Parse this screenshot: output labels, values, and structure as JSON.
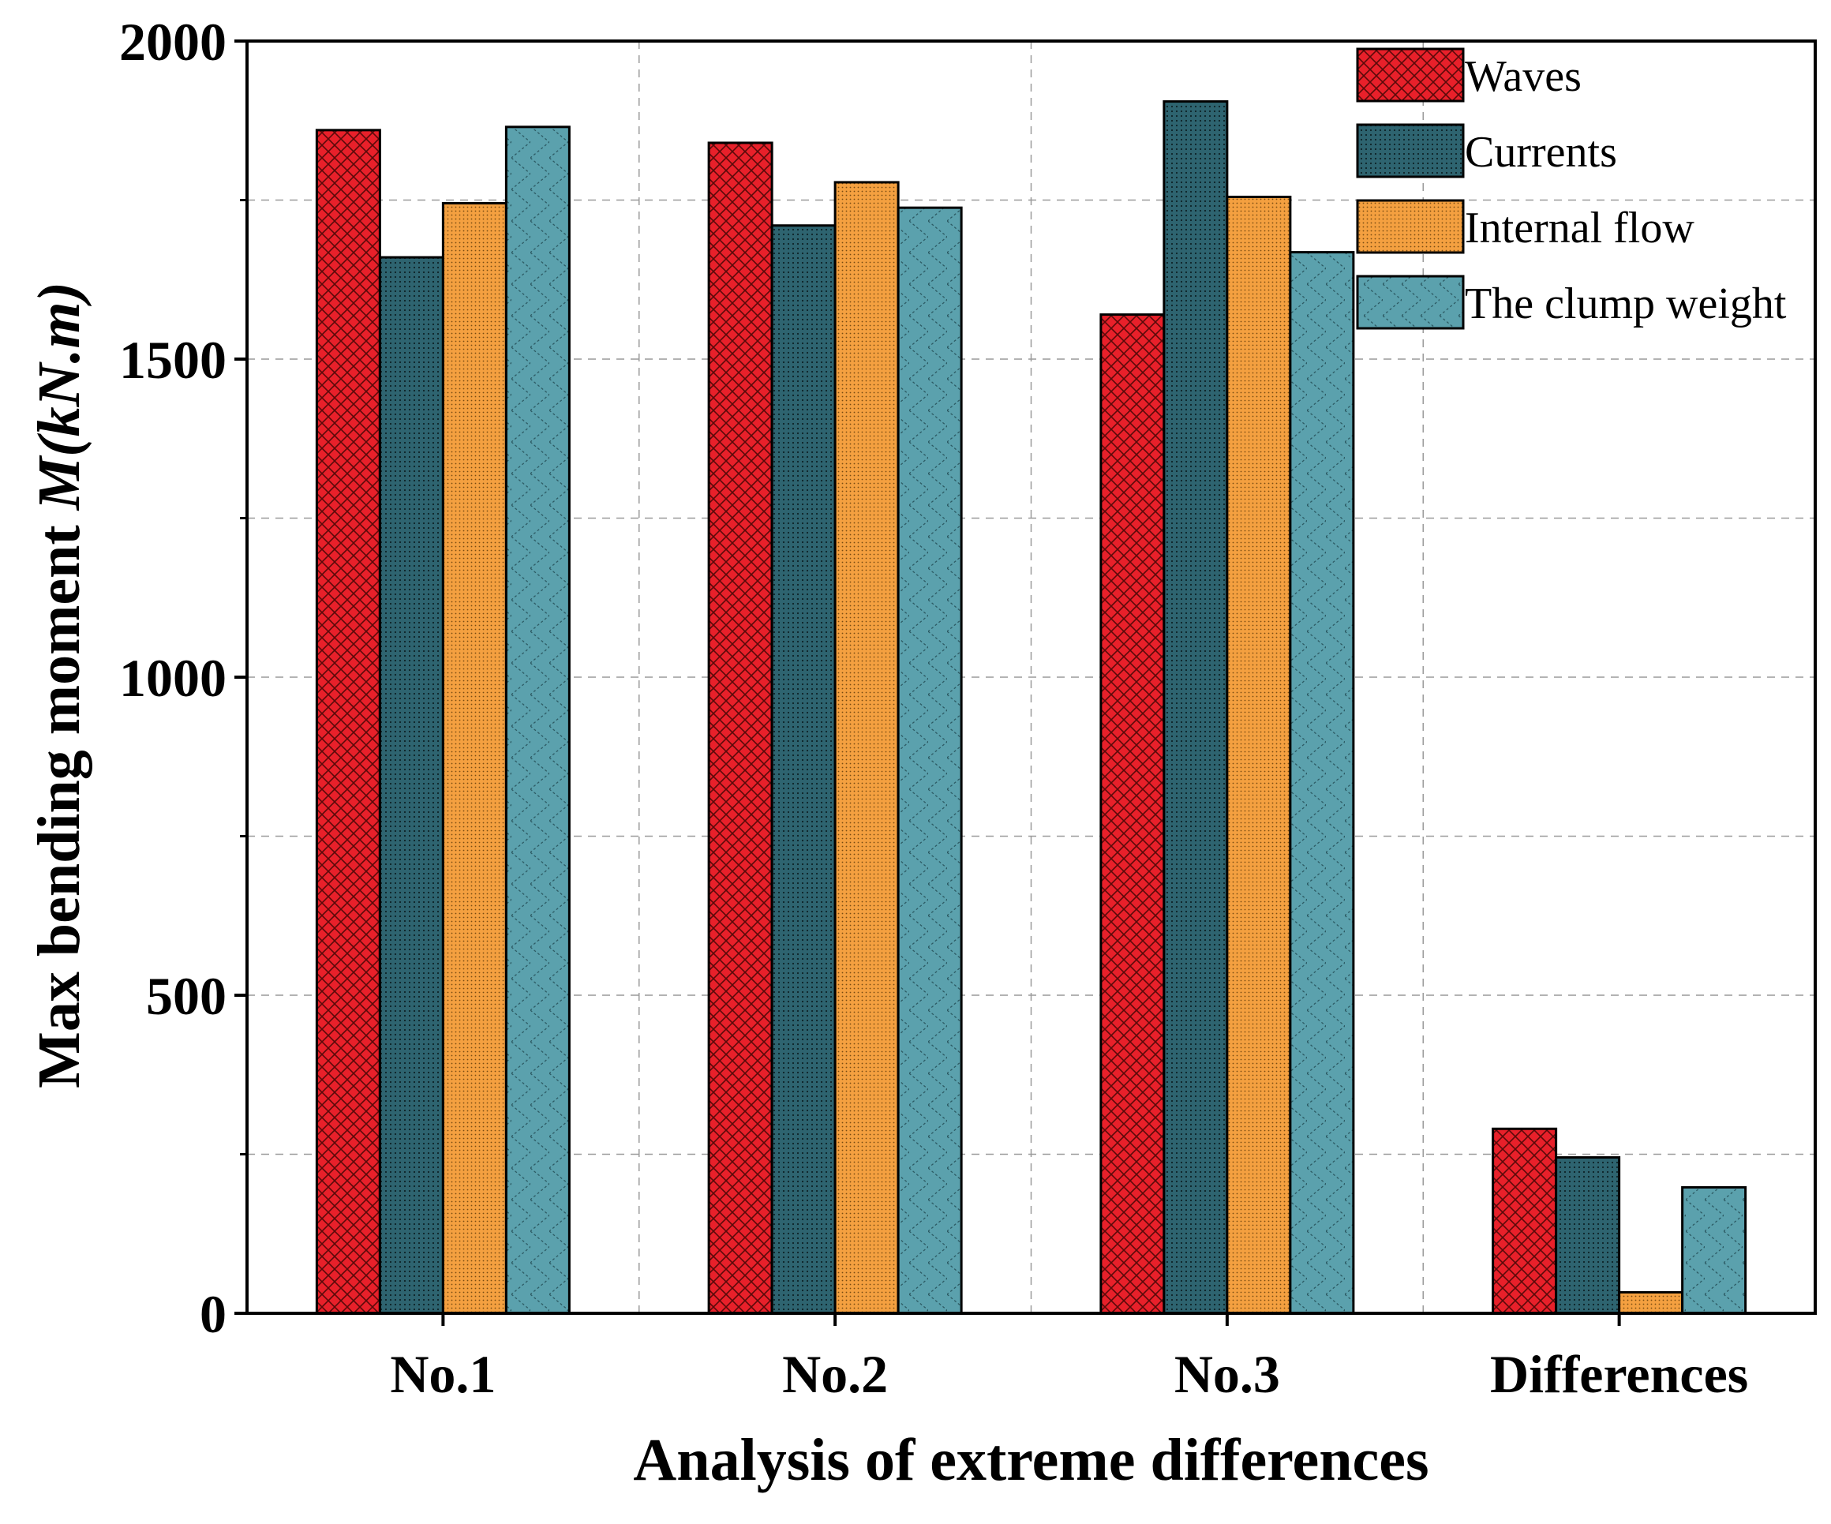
{
  "chart_data": {
    "type": "bar",
    "title": "",
    "xlabel": "Analysis of extreme differences",
    "ylabel_prefix": "Max bending moment ",
    "ylabel_symbol": "M(kN.m)",
    "ylim": [
      0,
      2000
    ],
    "yticks": [
      0,
      500,
      1000,
      1500,
      2000
    ],
    "categories": [
      "No.1",
      "No.2",
      "No.3",
      "Differences"
    ],
    "series": [
      {
        "name": "Waves",
        "color": "#e8202a",
        "pattern": "crosshatch",
        "values": [
          1860,
          1840,
          1570,
          290
        ]
      },
      {
        "name": "Currents",
        "color": "#2e6470",
        "pattern": "dots",
        "values": [
          1660,
          1710,
          1905,
          245
        ]
      },
      {
        "name": "Internal flow",
        "color": "#f4a040",
        "pattern": "fine-dots",
        "values": [
          1745,
          1778,
          1755,
          33
        ]
      },
      {
        "name": "The clump weight",
        "color": "#5ba1ad",
        "pattern": "zigzag",
        "values": [
          1865,
          1738,
          1668,
          198
        ]
      }
    ],
    "grid": true,
    "legend": "top-right"
  }
}
